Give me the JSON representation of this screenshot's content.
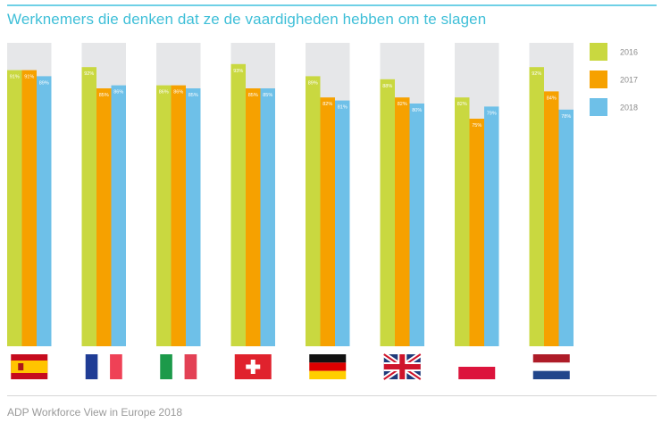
{
  "title": "Werknemers die denken dat ze de vaardigheden hebben om te slagen",
  "source": "ADP Workforce View in Europe 2018",
  "colors": {
    "2016": "#c9d840",
    "2017": "#f6a100",
    "2018": "#6ec0e8",
    "track": "#e6e7e9",
    "label": "#ffffff"
  },
  "chart_data": {
    "type": "bar",
    "categories": [
      "Spain",
      "France",
      "Italy",
      "Switzerland",
      "Germany",
      "United Kingdom",
      "Poland",
      "Netherlands"
    ],
    "category_display": "flag-icons",
    "ylim": [
      0,
      100
    ],
    "grid": false,
    "legend_position": "right",
    "series": [
      {
        "name": "2016",
        "values": [
          91,
          92,
          86,
          93,
          89,
          88,
          82,
          92
        ]
      },
      {
        "name": "2017",
        "values": [
          91,
          85,
          86,
          85,
          82,
          82,
          75,
          84
        ]
      },
      {
        "name": "2018",
        "values": [
          89,
          86,
          85,
          85,
          81,
          80,
          79,
          78
        ]
      }
    ],
    "value_labels": [
      [
        "91%",
        "92%",
        "86%",
        "93%",
        "89%",
        "88%",
        "82%",
        "92%"
      ],
      [
        "91%",
        "85%",
        "86%",
        "85%",
        "82%",
        "82%",
        "75%",
        "84%"
      ],
      [
        "89%",
        "86%",
        "85%",
        "85%",
        "81%",
        "80%",
        "79%",
        "78%"
      ]
    ]
  },
  "flags": [
    "spain-flag-icon",
    "france-flag-icon",
    "italy-flag-icon",
    "switzerland-flag-icon",
    "germany-flag-icon",
    "uk-flag-icon",
    "poland-flag-icon",
    "netherlands-flag-icon"
  ]
}
